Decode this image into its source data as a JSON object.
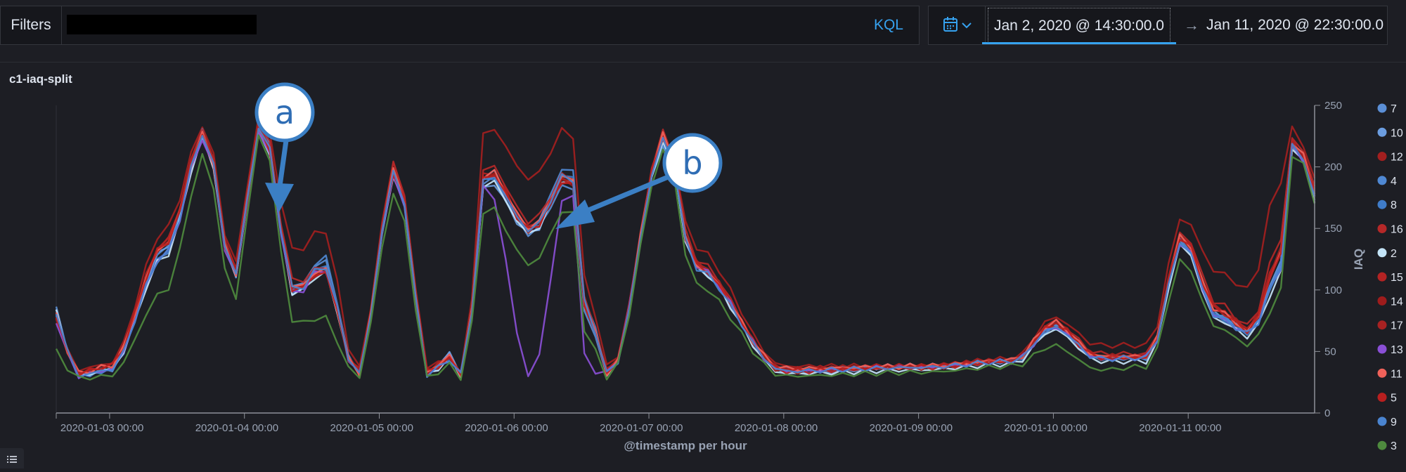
{
  "filters": {
    "label": "Filters",
    "query_value": "",
    "language": "KQL"
  },
  "date_picker": {
    "start": "Jan 2, 2020 @ 14:30:00.0",
    "separator": "→",
    "end": "Jan 11, 2020 @ 22:30:00.0"
  },
  "panel": {
    "title": "c1-iaq-split"
  },
  "annotations": [
    {
      "label": "a"
    },
    {
      "label": "b"
    }
  ],
  "colors": {
    "accent": "#36a2ef",
    "callout": "#3b7fc4"
  },
  "chart_data": {
    "type": "line",
    "title": "c1-iaq-split",
    "xlabel": "@timestamp per hour",
    "ylabel": "IAQ",
    "x_range": [
      "2020-01-02 14:30",
      "2020-01-11 22:30"
    ],
    "x_ticks": [
      "2020-01-03 00:00",
      "2020-01-04 00:00",
      "2020-01-05 00:00",
      "2020-01-06 00:00",
      "2020-01-07 00:00",
      "2020-01-08 00:00",
      "2020-01-09 00:00",
      "2020-01-10 00:00",
      "2020-01-11 00:00"
    ],
    "ylim": [
      0,
      250
    ],
    "y_ticks": [
      0,
      50,
      100,
      150,
      200,
      250
    ],
    "y_axis_side": "right",
    "legend_position": "right",
    "keyframes_x": [
      "2020-01-02 14:30",
      "2020-01-02 18:00",
      "2020-01-03 00:00",
      "2020-01-03 10:00",
      "2020-01-03 17:00",
      "2020-01-03 22:00",
      "2020-01-04 03:00",
      "2020-01-04 09:00",
      "2020-01-04 14:00",
      "2020-01-04 20:00",
      "2020-01-05 03:00",
      "2020-01-05 09:00",
      "2020-01-05 12:00",
      "2020-01-05 15:00",
      "2020-01-05 19:00",
      "2020-01-06 03:00",
      "2020-01-06 10:00",
      "2020-01-06 13:00",
      "2020-01-06 17:00",
      "2020-01-07 03:00",
      "2020-01-07 08:00",
      "2020-01-08 00:00",
      "2020-01-09 00:00",
      "2020-01-09 17:00",
      "2020-01-10 00:00",
      "2020-01-10 08:00",
      "2020-01-10 17:00",
      "2020-01-10 23:00",
      "2020-01-11 05:00",
      "2020-01-11 11:00",
      "2020-01-11 16:00",
      "2020-01-11 19:00",
      "2020-01-11 22:30"
    ],
    "series": [
      {
        "name": "7",
        "color": "#5b8fd6",
        "values": [
          85,
          30,
          35,
          135,
          230,
          110,
          240,
          100,
          125,
          30,
          195,
          28,
          50,
          30,
          195,
          145,
          190,
          75,
          30,
          225,
          120,
          35,
          38,
          42,
          70,
          45,
          45,
          140,
          80,
          65,
          110,
          230,
          175
        ]
      },
      {
        "name": "10",
        "color": "#6b9de0",
        "values": [
          80,
          30,
          35,
          135,
          225,
          110,
          235,
          95,
          120,
          30,
          200,
          28,
          50,
          30,
          190,
          145,
          195,
          80,
          30,
          220,
          120,
          33,
          37,
          42,
          72,
          45,
          45,
          145,
          80,
          65,
          115,
          225,
          175
        ]
      },
      {
        "name": "12",
        "color": "#a31f1f",
        "values": [
          75,
          35,
          40,
          150,
          235,
          120,
          245,
          130,
          150,
          35,
          205,
          35,
          45,
          30,
          235,
          190,
          235,
          100,
          35,
          225,
          135,
          38,
          38,
          44,
          78,
          55,
          55,
          160,
          115,
          100,
          185,
          235,
          190
        ]
      },
      {
        "name": "4",
        "color": "#4f88d3",
        "values": [
          82,
          30,
          35,
          130,
          230,
          108,
          238,
          98,
          128,
          30,
          198,
          28,
          45,
          30,
          200,
          150,
          205,
          85,
          30,
          225,
          118,
          35,
          38,
          42,
          70,
          44,
          45,
          142,
          80,
          65,
          112,
          228,
          178
        ]
      },
      {
        "name": "8",
        "color": "#3f7cc9",
        "values": [
          80,
          30,
          35,
          130,
          228,
          110,
          236,
          96,
          122,
          30,
          196,
          28,
          45,
          30,
          196,
          148,
          200,
          82,
          30,
          222,
          118,
          34,
          37,
          42,
          70,
          44,
          45,
          140,
          78,
          64,
          110,
          226,
          176
        ]
      },
      {
        "name": "16",
        "color": "#b52828",
        "values": [
          78,
          32,
          38,
          140,
          232,
          115,
          240,
          105,
          120,
          32,
          205,
          30,
          48,
          30,
          205,
          155,
          198,
          85,
          32,
          230,
          125,
          35,
          38,
          42,
          75,
          48,
          48,
          148,
          90,
          70,
          135,
          230,
          185
        ]
      },
      {
        "name": "2",
        "color": "#c4e4f7",
        "values": [
          82,
          30,
          35,
          128,
          225,
          108,
          232,
          95,
          115,
          30,
          195,
          28,
          45,
          30,
          192,
          145,
          195,
          80,
          30,
          222,
          118,
          32,
          35,
          40,
          68,
          42,
          42,
          138,
          76,
          62,
          105,
          225,
          172
        ]
      },
      {
        "name": "15",
        "color": "#b32323",
        "values": [
          78,
          32,
          38,
          140,
          230,
          112,
          238,
          100,
          118,
          32,
          200,
          30,
          48,
          30,
          200,
          150,
          196,
          82,
          32,
          228,
          122,
          35,
          38,
          42,
          72,
          46,
          46,
          145,
          85,
          68,
          125,
          228,
          180
        ]
      },
      {
        "name": "14",
        "color": "#9e1c1c",
        "values": [
          76,
          32,
          38,
          138,
          228,
          110,
          236,
          98,
          116,
          30,
          198,
          30,
          46,
          30,
          198,
          148,
          194,
          80,
          30,
          226,
          120,
          34,
          37,
          42,
          72,
          45,
          45,
          144,
          84,
          66,
          122,
          226,
          178
        ]
      },
      {
        "name": "17",
        "color": "#a82222",
        "values": [
          76,
          32,
          38,
          138,
          228,
          112,
          236,
          98,
          116,
          30,
          198,
          30,
          46,
          30,
          198,
          148,
          194,
          80,
          30,
          226,
          122,
          36,
          38,
          43,
          74,
          46,
          46,
          146,
          86,
          68,
          126,
          228,
          180
        ]
      },
      {
        "name": "13",
        "color": "#8a4fd6",
        "values": [
          75,
          30,
          35,
          130,
          225,
          108,
          232,
          95,
          118,
          30,
          195,
          28,
          45,
          30,
          190,
          28,
          190,
          35,
          32,
          225,
          120,
          34,
          37,
          42,
          70,
          44,
          45,
          140,
          78,
          64,
          110,
          225,
          175
        ]
      },
      {
        "name": "11",
        "color": "#f0625a",
        "values": [
          80,
          32,
          38,
          138,
          228,
          110,
          236,
          100,
          118,
          30,
          200,
          30,
          48,
          30,
          200,
          150,
          198,
          82,
          30,
          228,
          120,
          36,
          38,
          43,
          74,
          46,
          46,
          145,
          84,
          66,
          122,
          228,
          180
        ]
      },
      {
        "name": "5",
        "color": "#b81f1f",
        "values": [
          78,
          32,
          38,
          138,
          228,
          110,
          236,
          98,
          116,
          30,
          198,
          30,
          46,
          30,
          198,
          148,
          194,
          80,
          30,
          226,
          120,
          34,
          37,
          42,
          72,
          45,
          45,
          144,
          84,
          66,
          122,
          226,
          178
        ]
      },
      {
        "name": "9",
        "color": "#4a84d0",
        "values": [
          82,
          30,
          35,
          130,
          228,
          110,
          236,
          98,
          120,
          30,
          198,
          28,
          45,
          30,
          196,
          148,
          198,
          82,
          30,
          224,
          118,
          34,
          37,
          42,
          70,
          44,
          45,
          140,
          78,
          64,
          110,
          226,
          176
        ]
      },
      {
        "name": "3",
        "color": "#4e8a3e",
        "values": [
          50,
          28,
          30,
          100,
          210,
          90,
          230,
          72,
          78,
          28,
          180,
          26,
          40,
          28,
          170,
          120,
          170,
          60,
          28,
          215,
          105,
          30,
          33,
          38,
          55,
          35,
          38,
          125,
          70,
          55,
          90,
          220,
          172
        ]
      }
    ]
  }
}
